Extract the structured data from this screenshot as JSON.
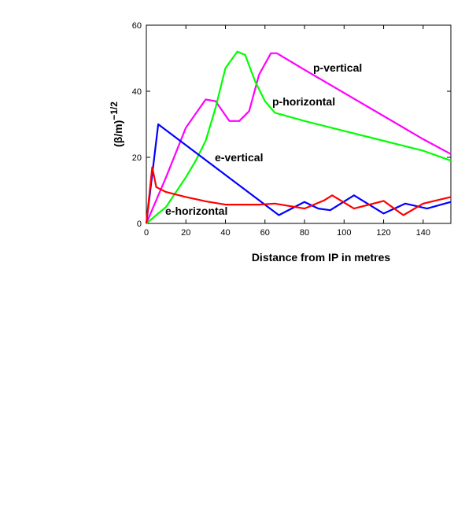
{
  "chart_data": {
    "type": "line",
    "xlabel": "Distance from IP in metres",
    "ylabel_base": "(β/m)",
    "ylabel_exponent": "−1/2",
    "xlim": [
      0,
      154
    ],
    "ylim": [
      0,
      60
    ],
    "xticks": [
      "0",
      "20",
      "40",
      "60",
      "80",
      "100",
      "120",
      "140"
    ],
    "yticks": [
      "0",
      "20",
      "40",
      "60"
    ],
    "grid": false,
    "series": [
      {
        "name": "p-vertical",
        "color": "#ff00ff",
        "x": [
          0,
          10,
          20,
          30,
          35,
          42,
          47,
          52,
          57,
          63,
          66,
          80,
          100,
          120,
          140,
          154
        ],
        "y": [
          0,
          14,
          29,
          37.5,
          37,
          31,
          31,
          34,
          45,
          51.5,
          51.5,
          46.5,
          39.5,
          32.5,
          25.5,
          21
        ]
      },
      {
        "name": "p-horizontal",
        "color": "#00ff00",
        "x": [
          0,
          10,
          20,
          25,
          30,
          35,
          40,
          46,
          50,
          55,
          60,
          65,
          80,
          100,
          120,
          140,
          154
        ],
        "y": [
          0,
          5,
          14,
          19,
          25,
          35,
          47,
          52,
          51,
          43,
          37,
          33.5,
          31,
          28,
          25,
          22,
          19
        ]
      },
      {
        "name": "e-vertical",
        "color": "#0000ff",
        "x": [
          0,
          6,
          67,
          80,
          87,
          93,
          105,
          120,
          131,
          142,
          154
        ],
        "y": [
          0,
          30,
          2.5,
          6.5,
          4.5,
          4,
          8.5,
          3,
          6,
          4.5,
          6.5
        ]
      },
      {
        "name": "e-horizontal",
        "color": "#ff0000",
        "x": [
          0,
          3,
          5,
          10,
          20,
          30,
          40,
          50,
          57,
          65,
          80,
          90,
          94,
          105,
          120,
          130,
          140,
          154
        ],
        "y": [
          0,
          17,
          11,
          9.5,
          8,
          6.7,
          5.7,
          5.7,
          5.7,
          6,
          4.5,
          7,
          8.5,
          4.5,
          6.8,
          2.5,
          6,
          8
        ]
      }
    ]
  }
}
